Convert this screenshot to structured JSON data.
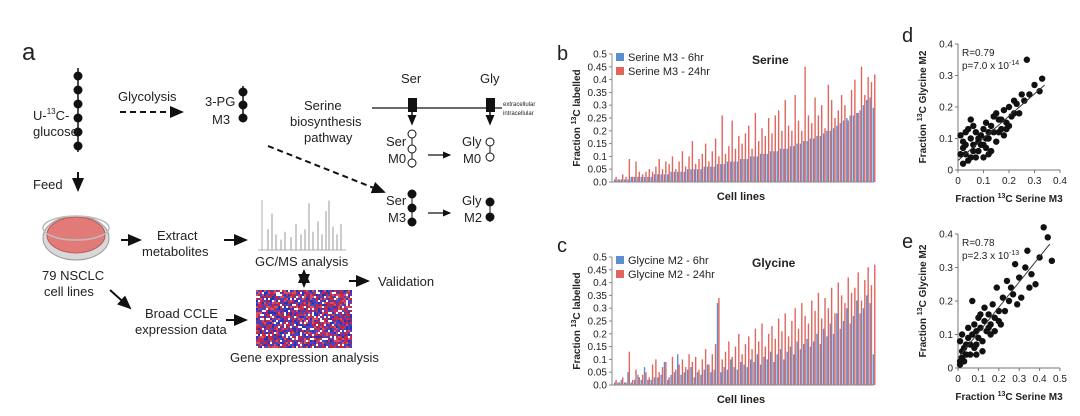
{
  "panel_a": {
    "letter": "a",
    "glucose_label": "U-",
    "glucose_sup": "13",
    "glucose_label_2": "C-",
    "glucose_label_3": "glucose",
    "glycolysis": "Glycolysis",
    "pg3": "3-PG",
    "pg3_m3": "M3",
    "pathway_1": "Serine",
    "pathway_2": "biosynthesis",
    "pathway_3": "pathway",
    "ser_head": "Ser",
    "gly_head": "Gly",
    "extracellular": "extracellular",
    "intracellular": "intracellular",
    "ser_m0_1": "Ser",
    "ser_m0_2": "M0",
    "gly_m0_1": "Gly",
    "gly_m0_2": "M0",
    "ser_m3_1": "Ser",
    "ser_m3_2": "M3",
    "gly_m2_1": "Gly",
    "gly_m2_2": "M2",
    "feed": "Feed",
    "extract_1": "Extract",
    "extract_2": "metabolites",
    "gcms": "GC/MS analysis",
    "validation": "Validation",
    "cells_1": "79 NSCLC",
    "cells_2": "cell lines",
    "broad_1": "Broad CCLE",
    "broad_2": "expression data",
    "gene_expr": "Gene expression analysis",
    "colors": {
      "dish_fill": "#e27a78",
      "dish_rim": "#9a9a9a",
      "heatmap_red": "#c8283a",
      "heatmap_blue": "#2634b8"
    }
  },
  "chart_data": [
    {
      "panel": "b",
      "type": "bar",
      "title": "Serine",
      "xlabel": "Cell lines",
      "ylabel": "Fraction 13C labelled",
      "ylim": [
        0,
        0.5
      ],
      "yticks": [
        "0.0",
        "0.05",
        "0.1",
        "0.15",
        "0.2",
        "0.25",
        "0.3",
        "0.35",
        "0.4",
        "0.45",
        "0.5"
      ],
      "colors": [
        "#5b8fd2",
        "#e0655c"
      ],
      "series": [
        {
          "name": "Serine M3 - 6hr",
          "values": [
            0.01,
            0.01,
            0.01,
            0.01,
            0.01,
            0.02,
            0.02,
            0.02,
            0.02,
            0.02,
            0.02,
            0.02,
            0.03,
            0.03,
            0.03,
            0.03,
            0.03,
            0.04,
            0.04,
            0.04,
            0.04,
            0.04,
            0.05,
            0.05,
            0.05,
            0.05,
            0.05,
            0.06,
            0.06,
            0.06,
            0.06,
            0.07,
            0.07,
            0.07,
            0.08,
            0.08,
            0.08,
            0.08,
            0.09,
            0.09,
            0.09,
            0.1,
            0.1,
            0.1,
            0.11,
            0.11,
            0.11,
            0.12,
            0.12,
            0.12,
            0.13,
            0.13,
            0.13,
            0.14,
            0.14,
            0.15,
            0.15,
            0.16,
            0.16,
            0.17,
            0.17,
            0.18,
            0.18,
            0.19,
            0.2,
            0.2,
            0.21,
            0.22,
            0.23,
            0.24,
            0.25,
            0.26,
            0.26,
            0.27,
            0.28,
            0.3,
            0.32,
            0.33,
            0.29
          ]
        },
        {
          "name": "Serine M3 - 24hr",
          "values": [
            0.02,
            0.01,
            0.03,
            0.02,
            0.09,
            0.02,
            0.08,
            0.04,
            0.03,
            0.04,
            0.05,
            0.04,
            0.06,
            0.09,
            0.05,
            0.08,
            0.07,
            0.1,
            0.05,
            0.08,
            0.12,
            0.06,
            0.1,
            0.16,
            0.07,
            0.09,
            0.11,
            0.15,
            0.08,
            0.12,
            0.17,
            0.1,
            0.26,
            0.11,
            0.14,
            0.24,
            0.13,
            0.18,
            0.15,
            0.19,
            0.22,
            0.13,
            0.27,
            0.16,
            0.21,
            0.18,
            0.25,
            0.19,
            0.26,
            0.28,
            0.2,
            0.32,
            0.22,
            0.2,
            0.34,
            0.24,
            0.2,
            0.45,
            0.26,
            0.23,
            0.33,
            0.26,
            0.3,
            0.21,
            0.38,
            0.32,
            0.25,
            0.28,
            0.34,
            0.3,
            0.24,
            0.36,
            0.4,
            0.27,
            0.45,
            0.34,
            0.41,
            0.39,
            0.42
          ]
        }
      ]
    },
    {
      "panel": "c",
      "type": "bar",
      "title": "Glycine",
      "xlabel": "Cell lines",
      "ylabel": "Fraction 13C labelled",
      "ylim": [
        0,
        0.5
      ],
      "yticks": [
        "0.0",
        "0.05",
        "0.1",
        "0.15",
        "0.2",
        "0.25",
        "0.3",
        "0.35",
        "0.4",
        "0.45",
        "0.5"
      ],
      "colors": [
        "#5b8fd2",
        "#e0655c"
      ],
      "series": [
        {
          "name": "Glycine M2 - 6hr",
          "values": [
            0.01,
            0.01,
            0.02,
            0.01,
            0.05,
            0.01,
            0.02,
            0.04,
            0.02,
            0.07,
            0.02,
            0.02,
            0.03,
            0.03,
            0.04,
            0.09,
            0.02,
            0.04,
            0.05,
            0.12,
            0.04,
            0.05,
            0.06,
            0.07,
            0.03,
            0.05,
            0.04,
            0.06,
            0.08,
            0.05,
            0.06,
            0.32,
            0.05,
            0.07,
            0.06,
            0.1,
            0.07,
            0.06,
            0.09,
            0.08,
            0.07,
            0.1,
            0.09,
            0.12,
            0.08,
            0.11,
            0.1,
            0.13,
            0.09,
            0.12,
            0.14,
            0.1,
            0.13,
            0.15,
            0.12,
            0.17,
            0.14,
            0.16,
            0.18,
            0.15,
            0.17,
            0.2,
            0.16,
            0.22,
            0.19,
            0.24,
            0.2,
            0.28,
            0.22,
            0.25,
            0.3,
            0.24,
            0.27,
            0.33,
            0.28,
            0.3,
            0.35,
            0.32,
            0.12
          ]
        },
        {
          "name": "Glycine M2 - 24hr",
          "values": [
            0.02,
            0.01,
            0.03,
            0.01,
            0.13,
            0.02,
            0.06,
            0.03,
            0.04,
            0.05,
            0.03,
            0.08,
            0.1,
            0.05,
            0.07,
            0.09,
            0.03,
            0.11,
            0.06,
            0.08,
            0.1,
            0.07,
            0.12,
            0.09,
            0.11,
            0.06,
            0.1,
            0.14,
            0.08,
            0.12,
            0.16,
            0.34,
            0.1,
            0.13,
            0.17,
            0.11,
            0.15,
            0.2,
            0.12,
            0.16,
            0.19,
            0.14,
            0.22,
            0.17,
            0.24,
            0.15,
            0.2,
            0.23,
            0.18,
            0.26,
            0.21,
            0.28,
            0.19,
            0.25,
            0.3,
            0.22,
            0.32,
            0.27,
            0.24,
            0.33,
            0.29,
            0.36,
            0.26,
            0.34,
            0.3,
            0.38,
            0.28,
            0.4,
            0.35,
            0.32,
            0.42,
            0.36,
            0.38,
            0.44,
            0.33,
            0.41,
            0.46,
            0.39,
            0.47
          ]
        }
      ]
    },
    {
      "panel": "d",
      "type": "scatter",
      "annotation_r": "R=0.79",
      "annotation_p": "p=7.0 x 10",
      "annotation_p_exp": "-14",
      "xlabel": "Fraction 13C Serine M3",
      "ylabel": "Fraction 13C Glycine M2",
      "xlim": [
        0,
        0.4
      ],
      "ylim": [
        0,
        0.4
      ],
      "xticks": [
        "0",
        "0.1",
        "0.2",
        "0.3",
        "0.4"
      ],
      "yticks": [
        "0",
        "0.1",
        "0.2",
        "0.3",
        "0.4"
      ],
      "fit": [
        [
          0.0,
          0.03
        ],
        [
          0.34,
          0.27
        ]
      ],
      "points": [
        [
          0.01,
          0.05
        ],
        [
          0.02,
          0.07
        ],
        [
          0.01,
          0.11
        ],
        [
          0.03,
          0.12
        ],
        [
          0.02,
          0.09
        ],
        [
          0.04,
          0.13
        ],
        [
          0.03,
          0.05
        ],
        [
          0.05,
          0.1
        ],
        [
          0.05,
          0.16
        ],
        [
          0.06,
          0.08
        ],
        [
          0.07,
          0.12
        ],
        [
          0.06,
          0.14
        ],
        [
          0.08,
          0.09
        ],
        [
          0.08,
          0.06
        ],
        [
          0.09,
          0.11
        ],
        [
          0.1,
          0.13
        ],
        [
          0.1,
          0.08
        ],
        [
          0.11,
          0.15
        ],
        [
          0.12,
          0.1
        ],
        [
          0.12,
          0.05
        ],
        [
          0.13,
          0.14
        ],
        [
          0.14,
          0.12
        ],
        [
          0.15,
          0.18
        ],
        [
          0.15,
          0.09
        ],
        [
          0.16,
          0.16
        ],
        [
          0.17,
          0.13
        ],
        [
          0.18,
          0.19
        ],
        [
          0.19,
          0.15
        ],
        [
          0.2,
          0.2
        ],
        [
          0.21,
          0.17
        ],
        [
          0.22,
          0.22
        ],
        [
          0.23,
          0.21
        ],
        [
          0.24,
          0.18
        ],
        [
          0.25,
          0.24
        ],
        [
          0.27,
          0.35
        ],
        [
          0.28,
          0.24
        ],
        [
          0.3,
          0.27
        ],
        [
          0.32,
          0.25
        ],
        [
          0.33,
          0.29
        ],
        [
          0.04,
          0.03
        ],
        [
          0.07,
          0.04
        ],
        [
          0.13,
          0.06
        ],
        [
          0.02,
          0.02
        ],
        [
          0.1,
          0.04
        ],
        [
          0.18,
          0.11
        ],
        [
          0.16,
          0.12
        ],
        [
          0.11,
          0.1
        ],
        [
          0.09,
          0.08
        ],
        [
          0.06,
          0.06
        ],
        [
          0.05,
          0.04
        ],
        [
          0.14,
          0.17
        ],
        [
          0.2,
          0.14
        ],
        [
          0.12,
          0.12
        ],
        [
          0.08,
          0.1
        ],
        [
          0.03,
          0.08
        ],
        [
          0.17,
          0.16
        ],
        [
          0.26,
          0.22
        ],
        [
          0.22,
          0.18
        ],
        [
          0.11,
          0.07
        ],
        [
          0.19,
          0.13
        ]
      ]
    },
    {
      "panel": "e",
      "type": "scatter",
      "annotation_r": "R=0.78",
      "annotation_p": "p=2.3 x 10",
      "annotation_p_exp": "-13",
      "xlabel": "Fraction 13C Serine M3",
      "ylabel": "Fraction 13C Glycine M2",
      "xlim": [
        0,
        0.5
      ],
      "ylim": [
        0,
        0.4
      ],
      "xticks": [
        "0",
        "0.1",
        "0.2",
        "0.3",
        "0.4",
        "0.5"
      ],
      "yticks": [
        "0",
        "0.1",
        "0.2",
        "0.3",
        "0.4"
      ],
      "fit": [
        [
          0.0,
          0.03
        ],
        [
          0.45,
          0.37
        ]
      ],
      "points": [
        [
          0.01,
          0.02
        ],
        [
          0.02,
          0.05
        ],
        [
          0.01,
          0.08
        ],
        [
          0.03,
          0.06
        ],
        [
          0.02,
          0.1
        ],
        [
          0.04,
          0.04
        ],
        [
          0.05,
          0.09
        ],
        [
          0.05,
          0.12
        ],
        [
          0.06,
          0.07
        ],
        [
          0.07,
          0.1
        ],
        [
          0.08,
          0.13
        ],
        [
          0.08,
          0.06
        ],
        [
          0.09,
          0.11
        ],
        [
          0.1,
          0.09
        ],
        [
          0.1,
          0.15
        ],
        [
          0.11,
          0.12
        ],
        [
          0.12,
          0.08
        ],
        [
          0.13,
          0.14
        ],
        [
          0.14,
          0.11
        ],
        [
          0.15,
          0.16
        ],
        [
          0.16,
          0.1
        ],
        [
          0.17,
          0.19
        ],
        [
          0.18,
          0.15
        ],
        [
          0.19,
          0.24
        ],
        [
          0.2,
          0.17
        ],
        [
          0.21,
          0.13
        ],
        [
          0.22,
          0.21
        ],
        [
          0.24,
          0.26
        ],
        [
          0.25,
          0.2
        ],
        [
          0.27,
          0.22
        ],
        [
          0.28,
          0.31
        ],
        [
          0.3,
          0.27
        ],
        [
          0.31,
          0.21
        ],
        [
          0.33,
          0.3
        ],
        [
          0.34,
          0.35
        ],
        [
          0.36,
          0.28
        ],
        [
          0.38,
          0.25
        ],
        [
          0.4,
          0.33
        ],
        [
          0.42,
          0.42
        ],
        [
          0.44,
          0.39
        ],
        [
          0.46,
          0.32
        ],
        [
          0.03,
          0.02
        ],
        [
          0.06,
          0.04
        ],
        [
          0.12,
          0.05
        ],
        [
          0.02,
          0.03
        ],
        [
          0.09,
          0.07
        ],
        [
          0.15,
          0.12
        ],
        [
          0.07,
          0.2
        ],
        [
          0.11,
          0.16
        ],
        [
          0.04,
          0.07
        ],
        [
          0.13,
          0.18
        ],
        [
          0.18,
          0.11
        ],
        [
          0.23,
          0.17
        ],
        [
          0.26,
          0.24
        ],
        [
          0.29,
          0.19
        ],
        [
          0.35,
          0.24
        ],
        [
          0.16,
          0.13
        ],
        [
          0.01,
          0.01
        ],
        [
          0.09,
          0.04
        ],
        [
          0.2,
          0.14
        ]
      ]
    }
  ]
}
